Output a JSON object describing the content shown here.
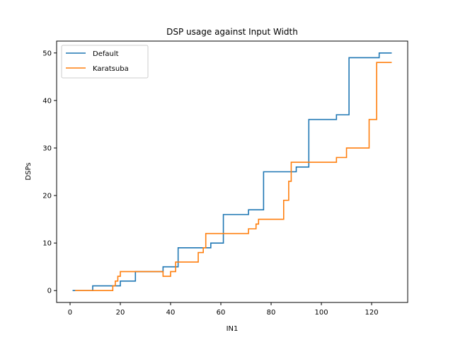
{
  "chart_data": {
    "type": "line",
    "title": "DSP usage against Input Width",
    "xlabel": "IN1",
    "ylabel": "DSPs",
    "xlim": [
      -5.35,
      134.35
    ],
    "ylim": [
      -2.5,
      52.5
    ],
    "xticks": [
      0,
      20,
      40,
      60,
      80,
      100,
      120
    ],
    "yticks": [
      0,
      10,
      20,
      30,
      40,
      50
    ],
    "grid": false,
    "legend_position": "top-left",
    "series": [
      {
        "name": "Default",
        "color": "#1f77b4",
        "x": [
          1,
          9,
          9,
          18,
          18,
          20,
          20,
          26,
          26,
          37,
          37,
          43,
          43,
          54,
          54,
          56,
          56,
          61,
          61,
          71,
          71,
          77,
          77,
          88,
          88,
          90,
          90,
          95,
          95,
          106,
          106,
          111,
          111,
          122,
          122,
          123,
          123,
          128
        ],
        "y": [
          0,
          0,
          1,
          1,
          1,
          1,
          2,
          2,
          4,
          4,
          5,
          5,
          9,
          9,
          9,
          9,
          10,
          10,
          16,
          16,
          17,
          17,
          25,
          25,
          25,
          25,
          26,
          26,
          36,
          36,
          37,
          37,
          49,
          49,
          49,
          49,
          50,
          50
        ]
      },
      {
        "name": "Karatsuba",
        "color": "#ff7f0e",
        "x": [
          2,
          17,
          17,
          18,
          18,
          19,
          19,
          20,
          20,
          37,
          37,
          38,
          38,
          40,
          40,
          42,
          42,
          43,
          43,
          51,
          51,
          53,
          53,
          54,
          54,
          71,
          71,
          74,
          74,
          75,
          75,
          85,
          85,
          87,
          87,
          88,
          88,
          106,
          106,
          107,
          107,
          110,
          110,
          119,
          119,
          121,
          121,
          122,
          122,
          128
        ],
        "y": [
          0,
          0,
          1,
          1,
          2,
          2,
          3,
          3,
          4,
          4,
          3,
          3,
          3,
          3,
          4,
          4,
          6,
          6,
          6,
          6,
          8,
          8,
          9,
          9,
          12,
          12,
          13,
          13,
          14,
          14,
          15,
          15,
          19,
          19,
          23,
          23,
          27,
          27,
          28,
          28,
          28,
          28,
          30,
          30,
          36,
          36,
          36,
          36,
          48,
          48
        ]
      }
    ]
  }
}
